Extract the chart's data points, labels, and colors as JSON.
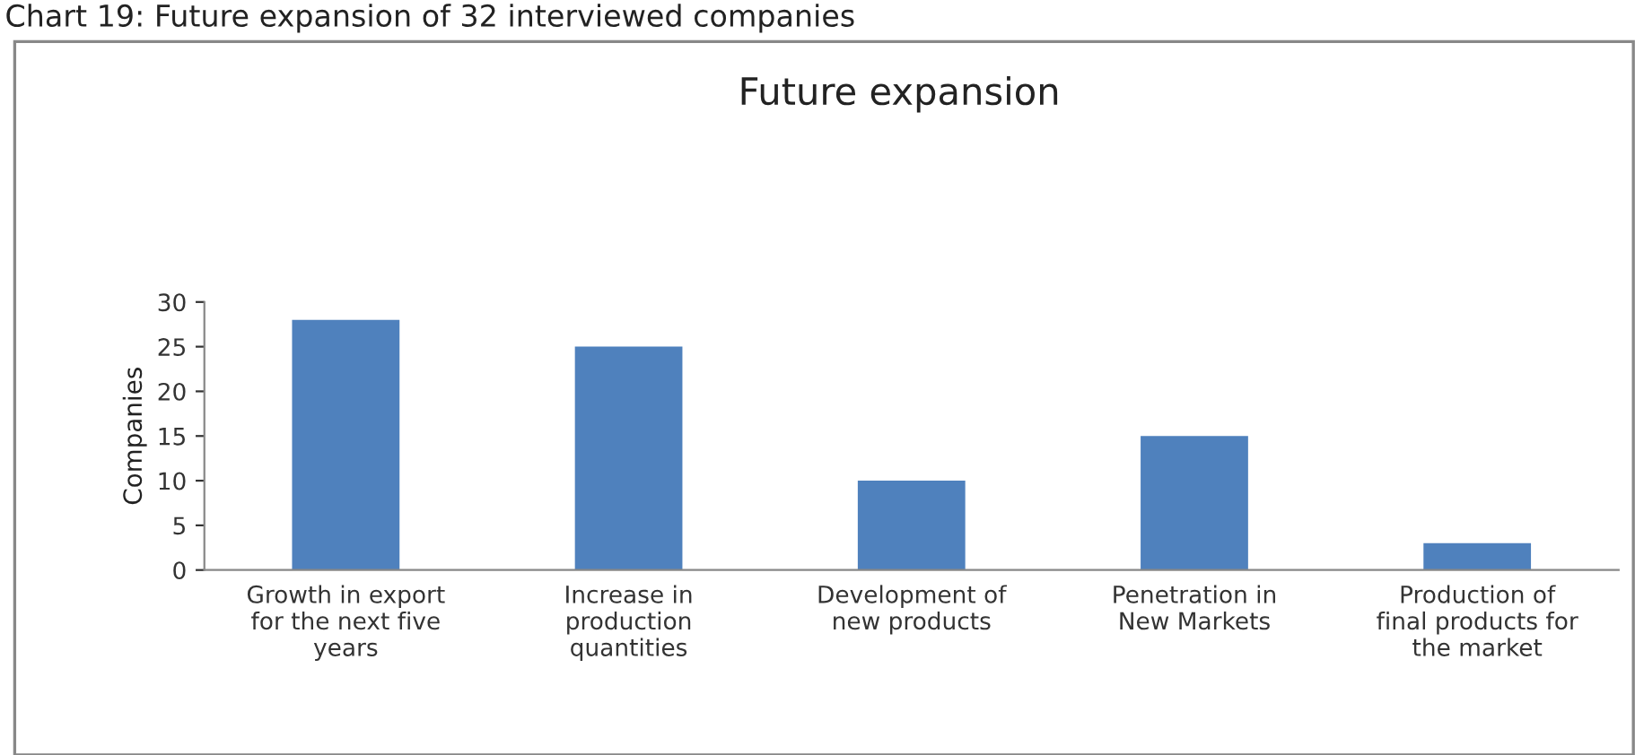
{
  "chart_data": {
    "type": "bar",
    "title": "Future expansion",
    "ylabel": "Companies",
    "annotations": [
      "Chart 19: Future expansion of 32 interviewed companies"
    ],
    "categories": [
      "Growth in export\nfor the next five\nyears",
      "Increase in\nproduction\nquantities",
      "Development of\nnew products",
      "Penetration in\nNew Markets",
      "Production of\nfinal products for\nthe market"
    ],
    "values": [
      28,
      25,
      10,
      15,
      3
    ],
    "color": "#4f81bd",
    "ylim": [
      0,
      30
    ],
    "yticks": [
      0,
      5,
      10,
      15,
      20,
      25,
      30
    ],
    "grid": false,
    "legend": false
  }
}
